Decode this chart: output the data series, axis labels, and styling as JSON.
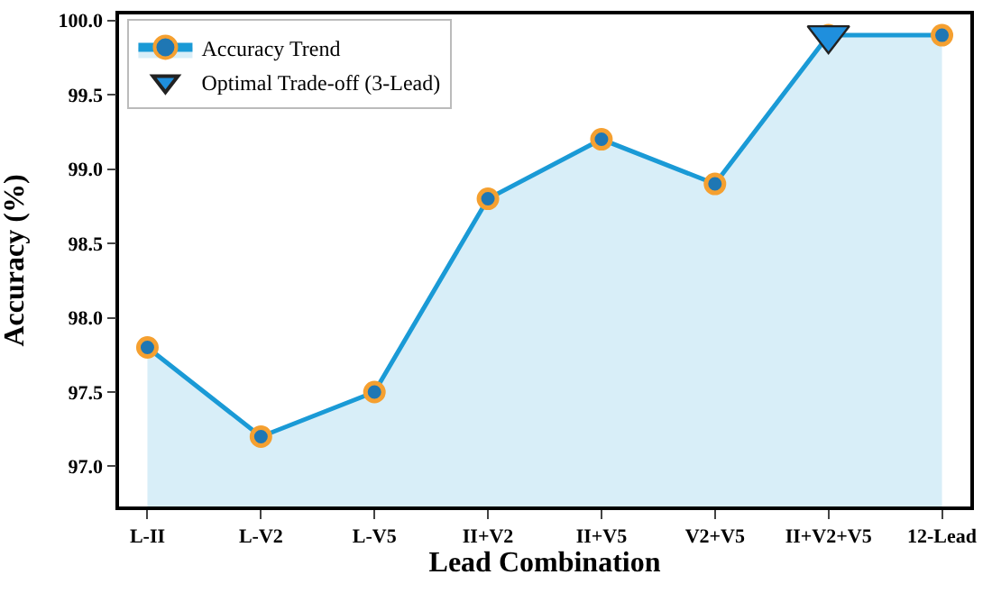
{
  "chart_data": {
    "type": "area",
    "xlabel": "Lead Combination",
    "ylabel": "Accuracy (%)",
    "categories": [
      "L-II",
      "L-V2",
      "L-V5",
      "II+V2",
      "II+V5",
      "V2+V5",
      "II+V2+V5",
      "12-Lead"
    ],
    "series": [
      {
        "name": "Accuracy Trend",
        "color": "#1a9ad6",
        "marker": "circle",
        "values": [
          97.8,
          97.2,
          97.5,
          98.8,
          99.2,
          98.9,
          99.9,
          99.9
        ]
      },
      {
        "name": "Optimal Trade-off (3-Lead)",
        "type": "scatter",
        "color": "#1f8fdd",
        "marker": "triangle",
        "x": [
          "II+V2+V5"
        ],
        "values": [
          99.9
        ]
      }
    ],
    "ylim": [
      96.73,
      100.04
    ],
    "yticks": [
      {
        "value": 97,
        "label": "97.0"
      },
      97.5,
      {
        "value": 98,
        "label": "98.0"
      },
      98.5,
      {
        "value": 99,
        "label": "99.0"
      },
      99.5,
      {
        "value": 100,
        "label": "100.0"
      }
    ],
    "grid": false,
    "legend": "top left"
  }
}
